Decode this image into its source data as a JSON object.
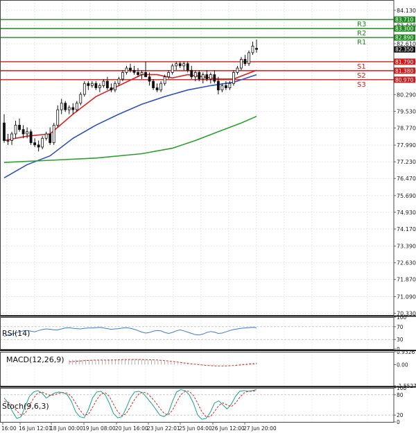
{
  "chart_data": {
    "type": "candlestick",
    "main": {
      "price_ticks": [
        "84.130",
        "83.430",
        "82.610",
        "81.790",
        "81.380",
        "80.970",
        "80.290",
        "79.530",
        "78.770",
        "77.990",
        "77.230",
        "76.470",
        "75.690",
        "74.930",
        "74.170",
        "73.390",
        "72.630",
        "71.870",
        "71.090",
        "70.330"
      ],
      "current_price": "82.350",
      "ylim": [
        70.25,
        84.6
      ],
      "levels": [
        {
          "name": "R3",
          "value": 83.71,
          "label": "83.710",
          "color": "#1f8a1f"
        },
        {
          "name": "R2",
          "value": 83.3,
          "label": "83.300",
          "color": "#1f8a1f"
        },
        {
          "name": "R1",
          "value": 82.89,
          "label": "82.890",
          "color": "#1f8a1f"
        },
        {
          "name": "S1",
          "value": 81.79,
          "label": "81.790",
          "color": "#d11a1a"
        },
        {
          "name": "S2",
          "value": 81.38,
          "label": "81.380",
          "color": "#d11a1a"
        },
        {
          "name": "S3",
          "value": 80.97,
          "label": "80.970",
          "color": "#d11a1a"
        }
      ],
      "candles": [
        [
          79.0,
          79.4,
          78.1,
          78.2
        ],
        [
          78.2,
          78.5,
          78.0,
          78.2
        ],
        [
          78.2,
          78.6,
          78.0,
          78.5
        ],
        [
          78.5,
          79.1,
          78.3,
          78.9
        ],
        [
          78.9,
          79.2,
          78.6,
          78.7
        ],
        [
          78.7,
          78.9,
          78.3,
          78.5
        ],
        [
          78.5,
          78.8,
          78.3,
          78.6
        ],
        [
          78.6,
          78.7,
          78.0,
          78.1
        ],
        [
          78.1,
          78.3,
          77.9,
          78.0
        ],
        [
          78.0,
          78.2,
          77.7,
          77.9
        ],
        [
          77.9,
          78.4,
          77.8,
          78.3
        ],
        [
          78.3,
          78.6,
          78.2,
          78.5
        ],
        [
          78.5,
          78.8,
          78.0,
          78.1
        ],
        [
          78.1,
          79.0,
          78.0,
          78.9
        ],
        [
          78.9,
          79.8,
          78.8,
          79.6
        ],
        [
          79.6,
          80.1,
          79.4,
          79.9
        ],
        [
          79.9,
          80.0,
          79.5,
          79.6
        ],
        [
          79.6,
          79.8,
          79.4,
          79.7
        ],
        [
          79.7,
          79.9,
          79.4,
          79.6
        ],
        [
          79.6,
          80.0,
          79.5,
          79.9
        ],
        [
          79.9,
          80.4,
          79.8,
          80.3
        ],
        [
          80.3,
          80.9,
          80.2,
          80.8
        ],
        [
          80.8,
          80.9,
          80.5,
          80.7
        ],
        [
          80.7,
          80.9,
          80.6,
          80.8
        ],
        [
          80.8,
          80.9,
          80.5,
          80.6
        ],
        [
          80.6,
          80.8,
          80.4,
          80.7
        ],
        [
          80.7,
          81.0,
          80.6,
          80.9
        ],
        [
          80.9,
          81.1,
          80.5,
          80.6
        ],
        [
          80.6,
          80.8,
          80.4,
          80.5
        ],
        [
          80.5,
          80.9,
          80.4,
          80.8
        ],
        [
          80.8,
          81.1,
          80.7,
          81.0
        ],
        [
          81.0,
          81.4,
          80.9,
          81.3
        ],
        [
          81.3,
          81.6,
          81.2,
          81.5
        ],
        [
          81.5,
          81.7,
          81.3,
          81.4
        ],
        [
          81.4,
          81.6,
          81.2,
          81.3
        ],
        [
          81.3,
          81.5,
          81.1,
          81.2
        ],
        [
          81.2,
          81.4,
          81.0,
          81.3
        ],
        [
          81.3,
          81.8,
          81.2,
          81.1
        ],
        [
          81.1,
          81.3,
          80.7,
          80.9
        ],
        [
          80.9,
          81.0,
          80.5,
          80.6
        ],
        [
          80.6,
          80.8,
          80.4,
          80.5
        ],
        [
          80.5,
          80.9,
          80.4,
          80.8
        ],
        [
          80.8,
          81.2,
          80.7,
          81.1
        ],
        [
          81.1,
          81.4,
          81.0,
          81.3
        ],
        [
          81.3,
          81.7,
          81.2,
          81.6
        ],
        [
          81.6,
          81.8,
          81.4,
          81.7
        ],
        [
          81.7,
          81.8,
          81.5,
          81.6
        ],
        [
          81.6,
          81.8,
          81.4,
          81.7
        ],
        [
          81.7,
          81.8,
          81.3,
          81.4
        ],
        [
          81.4,
          81.6,
          81.0,
          81.1
        ],
        [
          81.1,
          81.4,
          80.9,
          81.3
        ],
        [
          81.3,
          81.4,
          80.9,
          81.0
        ],
        [
          81.0,
          81.3,
          80.8,
          81.2
        ],
        [
          81.2,
          81.4,
          80.9,
          81.0
        ],
        [
          81.0,
          81.3,
          80.8,
          81.2
        ],
        [
          81.2,
          81.4,
          80.8,
          80.9
        ],
        [
          80.9,
          81.1,
          80.3,
          80.5
        ],
        [
          80.5,
          80.8,
          80.4,
          80.7
        ],
        [
          80.7,
          80.9,
          80.5,
          80.6
        ],
        [
          80.6,
          80.9,
          80.5,
          80.8
        ],
        [
          80.8,
          81.4,
          80.7,
          81.3
        ],
        [
          81.3,
          81.6,
          81.2,
          81.5
        ],
        [
          81.5,
          82.0,
          81.4,
          81.9
        ],
        [
          81.9,
          82.1,
          81.6,
          81.7
        ],
        [
          81.7,
          82.3,
          81.6,
          82.2
        ],
        [
          82.2,
          82.7,
          82.1,
          82.5
        ],
        [
          82.4,
          82.8,
          82.2,
          82.35
        ]
      ],
      "ma_series": [
        {
          "color": "#e02020",
          "values": [
            [
              0,
              78.2
            ],
            [
              6,
              78.4
            ],
            [
              12,
              78.5
            ],
            [
              18,
              79.4
            ],
            [
              24,
              80.2
            ],
            [
              30,
              80.7
            ],
            [
              36,
              81.2
            ],
            [
              40,
              81.2
            ],
            [
              44,
              81.05
            ],
            [
              48,
              81.2
            ],
            [
              52,
              81.1
            ],
            [
              56,
              81.0
            ],
            [
              60,
              81.0
            ],
            [
              66,
              81.4
            ]
          ]
        },
        {
          "color": "#3050c0",
          "values": [
            [
              0,
              76.5
            ],
            [
              6,
              77.1
            ],
            [
              12,
              77.5
            ],
            [
              18,
              78.3
            ],
            [
              24,
              78.9
            ],
            [
              30,
              79.4
            ],
            [
              36,
              79.85
            ],
            [
              42,
              80.2
            ],
            [
              48,
              80.5
            ],
            [
              54,
              80.7
            ],
            [
              60,
              80.85
            ],
            [
              66,
              81.2
            ]
          ]
        },
        {
          "color": "#2ca02c",
          "values": [
            [
              0,
              77.2
            ],
            [
              12,
              77.3
            ],
            [
              24,
              77.4
            ],
            [
              36,
              77.6
            ],
            [
              44,
              77.85
            ],
            [
              50,
              78.2
            ],
            [
              56,
              78.6
            ],
            [
              62,
              79.0
            ],
            [
              66,
              79.3
            ]
          ]
        }
      ]
    },
    "rsi": {
      "label": "RSI(14)",
      "ticks": [
        "100",
        "70",
        "30",
        "0"
      ],
      "ylim": [
        0,
        100
      ],
      "color": "#3a7bd5",
      "values": [
        40,
        44,
        47,
        50,
        54,
        57,
        58,
        56,
        54,
        58,
        61,
        63,
        62,
        60,
        60,
        63,
        66,
        67,
        65,
        64,
        63,
        65,
        66,
        66,
        67,
        68,
        66,
        64,
        62,
        63,
        64,
        66,
        67,
        65,
        62,
        58,
        53,
        50,
        52,
        56,
        58,
        57,
        52,
        49,
        52,
        57,
        60,
        57,
        53,
        49,
        45,
        44,
        47,
        52,
        55,
        53,
        49,
        50,
        54,
        58,
        61,
        63,
        65,
        66,
        67,
        68,
        67
      ]
    },
    "macd": {
      "label": "MACD(12,26,9)",
      "ticks": [
        "0.9326",
        "0.00",
        "-1.5527"
      ],
      "ylim": [
        -1.5527,
        0.9326
      ],
      "histogram_color": "#9a9a9a",
      "signal_color": "#d62728",
      "histogram": [
        0.35,
        0.36,
        0.36,
        0.36,
        0.35,
        0.35,
        0.34,
        0.34,
        0.33,
        0.33,
        0.34,
        0.35,
        0.36,
        0.36,
        0.37,
        0.38,
        0.39,
        0.4,
        0.4,
        0.4,
        0.39,
        0.38,
        0.37,
        0.36,
        0.34,
        0.32,
        0.3,
        0.28,
        0.26,
        0.23,
        0.2,
        0.17,
        0.14,
        0.11,
        0.09,
        0.07,
        0.05,
        0.03,
        0.01,
        -0.01,
        -0.03,
        -0.04,
        -0.05,
        -0.06,
        -0.06,
        -0.05,
        -0.04,
        -0.03,
        -0.02,
        0.0,
        0.02,
        0.04,
        0.06,
        0.08,
        0.1,
        0.12,
        0.14,
        0.16
      ],
      "signal": [
        0.2,
        0.22,
        0.24,
        0.26,
        0.28,
        0.3,
        0.31,
        0.32,
        0.33,
        0.33,
        0.33,
        0.33,
        0.33,
        0.34,
        0.34,
        0.35,
        0.36,
        0.36,
        0.37,
        0.37,
        0.37,
        0.37,
        0.37,
        0.36,
        0.36,
        0.35,
        0.34,
        0.33,
        0.31,
        0.29,
        0.27,
        0.24,
        0.21,
        0.18,
        0.15,
        0.12,
        0.09,
        0.06,
        0.03,
        0.01,
        -0.02,
        -0.04,
        -0.06,
        -0.08,
        -0.09,
        -0.1,
        -0.1,
        -0.1,
        -0.09,
        -0.08,
        -0.07,
        -0.05,
        -0.03,
        -0.01,
        0.01,
        0.03,
        0.05,
        0.07
      ]
    },
    "stoch": {
      "label": "Stoch(9,6,3)",
      "ticks": [
        "100",
        "80",
        "20",
        "0"
      ],
      "ylim": [
        0,
        100
      ],
      "k_color": "#17a589",
      "d_color": "#d62728",
      "k": [
        70,
        55,
        30,
        10,
        15,
        45,
        75,
        88,
        92,
        85,
        70,
        78,
        85,
        88,
        86,
        80,
        60,
        30,
        15,
        12,
        35,
        70,
        88,
        90,
        80,
        55,
        25,
        12,
        15,
        40,
        70,
        88,
        90,
        85,
        70,
        55,
        38,
        20,
        15,
        25,
        60,
        88,
        95,
        92,
        80,
        55,
        20,
        8,
        10,
        28,
        55,
        62,
        50,
        38,
        52,
        75,
        90,
        92,
        90,
        92,
        95
      ],
      "d": [
        60,
        58,
        48,
        32,
        20,
        25,
        48,
        70,
        85,
        88,
        82,
        78,
        80,
        84,
        86,
        85,
        75,
        55,
        35,
        20,
        22,
        42,
        65,
        82,
        86,
        75,
        52,
        30,
        18,
        24,
        44,
        66,
        82,
        88,
        84,
        72,
        58,
        40,
        26,
        20,
        34,
        58,
        80,
        90,
        90,
        78,
        55,
        30,
        15,
        15,
        30,
        48,
        56,
        50,
        45,
        55,
        72,
        85,
        90,
        90,
        92
      ]
    },
    "x_labels": [
      "16:00",
      "16 Jun 12:01",
      "18 Jun 00:00",
      "19 Jun 08:00",
      "20 Jun 16:00",
      "23 Jun 22:01",
      "25 Jun 04:00",
      "26 Jun 12:00",
      "27 Jun 20:00"
    ]
  }
}
